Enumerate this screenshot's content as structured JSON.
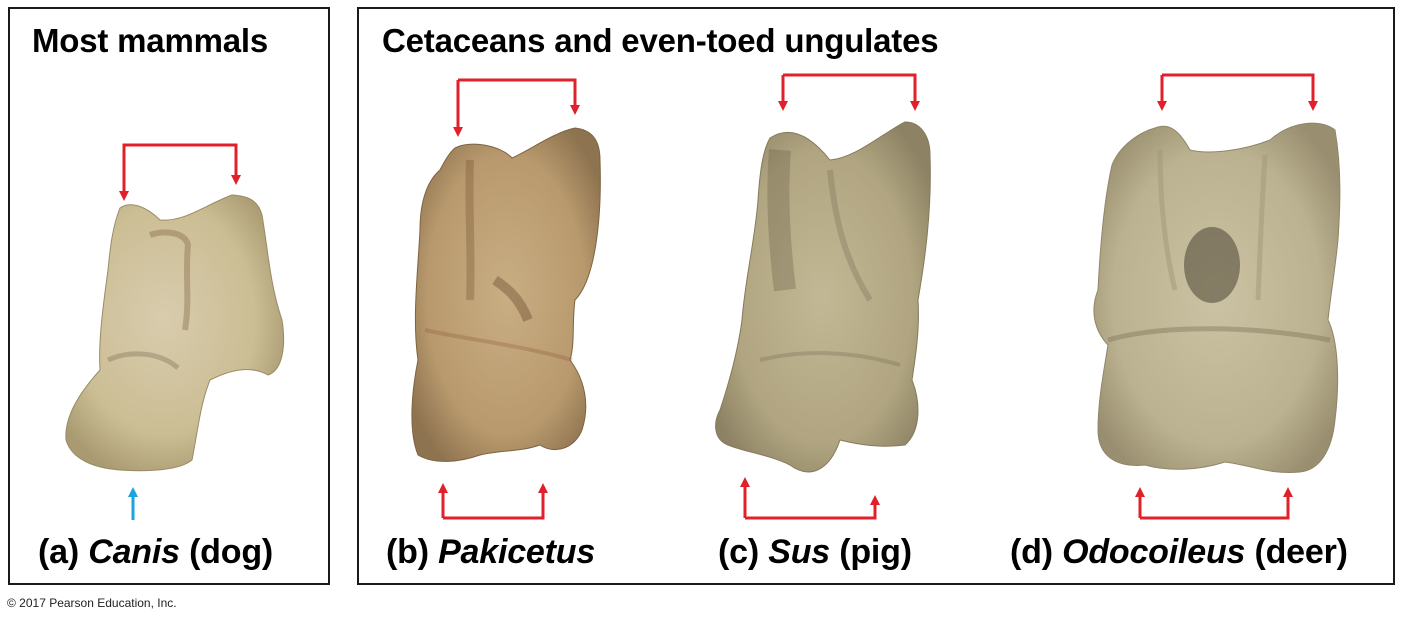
{
  "panels": {
    "left": {
      "heading": "Most mammals"
    },
    "right": {
      "heading": "Cetaceans and even-toed ungulates"
    }
  },
  "specimens": [
    {
      "letter": "(a)",
      "genus": "Canis",
      "common": "(dog)"
    },
    {
      "letter": "(b)",
      "genus": "Pakicetus",
      "common": ""
    },
    {
      "letter": "(c)",
      "genus": "Sus",
      "common": "(pig)"
    },
    {
      "letter": "(d)",
      "genus": "Odocoileus",
      "common": "(deer)"
    }
  ],
  "colors": {
    "arrow_red": "#e0202a",
    "arrow_blue": "#1aa3e0",
    "frame": "#1a1a1a",
    "bone_dog": "#d9cfa8",
    "bone_pakicetus": "#c4a77e",
    "bone_pig": "#b8ad8c",
    "bone_deer": "#c2b99a"
  },
  "footer": {
    "copyright": "© 2017 Pearson Education, Inc."
  }
}
